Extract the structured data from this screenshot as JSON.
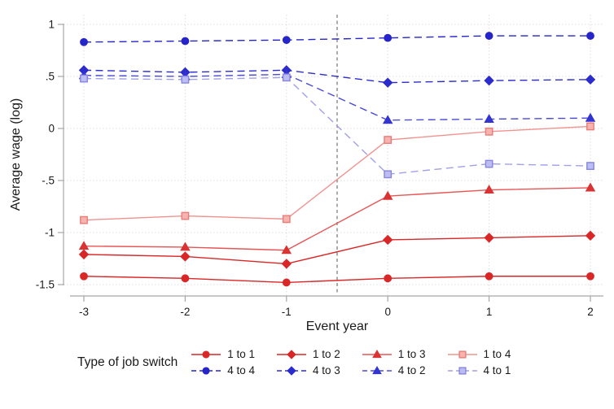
{
  "chart_data": {
    "type": "line",
    "title": "",
    "xlabel": "Event year",
    "ylabel": "Average wage (log)",
    "legend_title": "Type of job switch",
    "x": [
      -3,
      -2,
      -1,
      0,
      1,
      2
    ],
    "xtick_labels": [
      "-3",
      "-2",
      "-1",
      "0",
      "1",
      "2"
    ],
    "yticks": [
      1,
      0.5,
      0,
      -0.5,
      -1,
      -1.5
    ],
    "ytick_labels": [
      "1",
      ".5",
      "0",
      "-.5",
      "-1",
      "-1.5"
    ],
    "xlim": [
      -3.2,
      2.13
    ],
    "ylim": [
      -1.6,
      1.1
    ],
    "grid": "dotted horizontal and vertical at ticks",
    "reference_line_x": -0.5,
    "reference_line_style": "dashed gray",
    "legend_rows": [
      [
        "1 to 1",
        "1 to 2",
        "1 to 3",
        "1 to 4"
      ],
      [
        "4 to 4",
        "4 to 3",
        "4 to 2",
        "4 to 1"
      ]
    ],
    "series": [
      {
        "name": "1 to 1",
        "marker": "circle",
        "line_style": "solid",
        "line_color": "#d92626",
        "marker_color": "#d92626",
        "marker_fill": "#d92626",
        "values": [
          -1.42,
          -1.44,
          -1.48,
          -1.44,
          -1.42,
          -1.42
        ]
      },
      {
        "name": "1 to 2",
        "marker": "diamond",
        "line_style": "solid",
        "line_color": "#d92626",
        "marker_color": "#d92626",
        "marker_fill": "#d92626",
        "values": [
          -1.21,
          -1.23,
          -1.3,
          -1.07,
          -1.05,
          -1.03
        ]
      },
      {
        "name": "1 to 3",
        "marker": "triangle",
        "line_style": "solid",
        "line_color": "#e65555",
        "marker_color": "#d93333",
        "marker_fill": "#d93333",
        "values": [
          -1.13,
          -1.14,
          -1.17,
          -0.65,
          -0.59,
          -0.57
        ]
      },
      {
        "name": "1 to 4",
        "marker": "square",
        "line_style": "solid",
        "line_color": "#f0938f",
        "marker_color": "#ea7b76",
        "marker_fill": "#f6b4b0",
        "values": [
          -0.88,
          -0.84,
          -0.87,
          -0.11,
          -0.03,
          0.02
        ]
      },
      {
        "name": "4 to 4",
        "marker": "circle",
        "line_style": "dashed",
        "line_color": "#2525c9",
        "marker_color": "#2525c9",
        "marker_fill": "#2525c9",
        "values": [
          0.83,
          0.84,
          0.85,
          0.87,
          0.89,
          0.89
        ]
      },
      {
        "name": "4 to 3",
        "marker": "diamond",
        "line_style": "dashed",
        "line_color": "#2c2ccc",
        "marker_color": "#2c2ccc",
        "marker_fill": "#2c2ccc",
        "values": [
          0.56,
          0.54,
          0.56,
          0.44,
          0.46,
          0.47
        ]
      },
      {
        "name": "4 to 2",
        "marker": "triangle",
        "line_style": "dashed",
        "line_color": "#4a4ad4",
        "marker_color": "#3434cf",
        "marker_fill": "#3434cf",
        "values": [
          0.51,
          0.5,
          0.52,
          0.08,
          0.09,
          0.1
        ]
      },
      {
        "name": "4 to 1",
        "marker": "square",
        "line_style": "dashed",
        "line_color": "#a0a0ea",
        "marker_color": "#8585e2",
        "marker_fill": "#bdbdf2",
        "values": [
          0.48,
          0.47,
          0.49,
          -0.44,
          -0.34,
          -0.36
        ]
      }
    ],
    "colors": {
      "red_main": "#d92626",
      "red_light": "#f0938f",
      "blue_main": "#2525c9",
      "blue_light": "#a0a0ea",
      "gridline": "#dcdcdc",
      "axis": "#a6a6a6",
      "reference_line": "#5a5a5a",
      "text": "#1a1a1a"
    }
  }
}
